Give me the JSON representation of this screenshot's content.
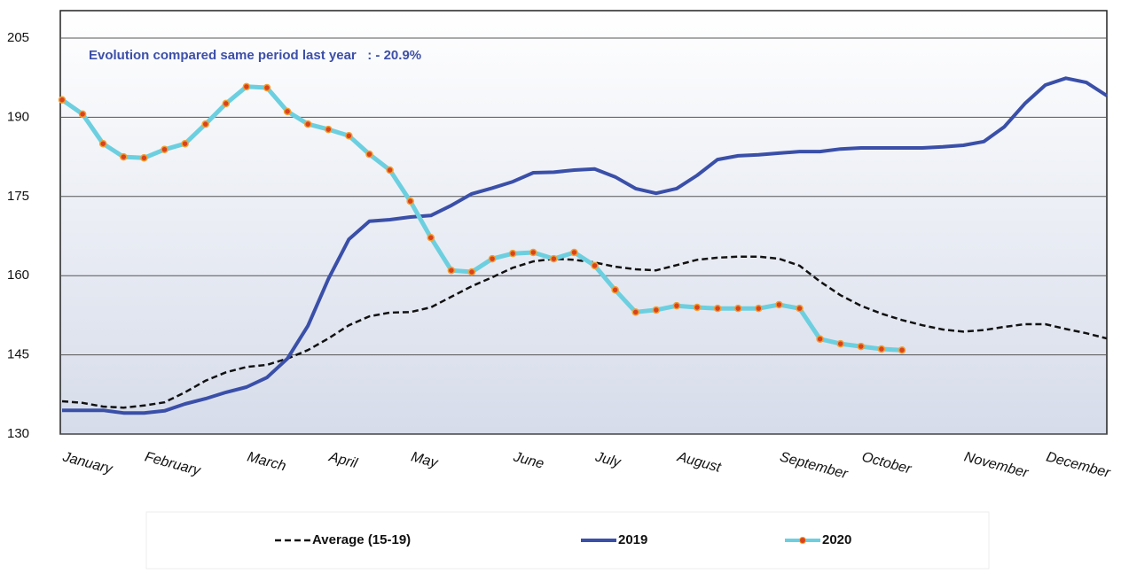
{
  "chart_data": {
    "type": "line",
    "annotation": "Evolution compared same period last year   : - 20.9%",
    "categories": [
      "January",
      null,
      null,
      null,
      "February",
      null,
      null,
      null,
      null,
      "March",
      null,
      null,
      null,
      "April",
      null,
      null,
      null,
      "May",
      null,
      null,
      null,
      null,
      "June",
      null,
      null,
      null,
      "July",
      null,
      null,
      null,
      "August",
      null,
      null,
      null,
      null,
      "September",
      null,
      null,
      null,
      "October",
      null,
      null,
      null,
      null,
      "November",
      null,
      null,
      null,
      "December",
      null,
      null,
      null
    ],
    "series": [
      {
        "name": "Average (15-19)",
        "color": "#111111",
        "dash": true,
        "markers": false,
        "values": [
          136.2,
          135.9,
          135.2,
          135.0,
          135.4,
          136.0,
          137.9,
          140.1,
          141.7,
          142.7,
          143.1,
          144.3,
          145.9,
          148.1,
          150.6,
          152.3,
          153.0,
          153.1,
          154.0,
          156.0,
          158.0,
          159.7,
          161.5,
          162.7,
          163.2,
          163.0,
          162.5,
          161.7,
          161.2,
          161.0,
          162.0,
          163.0,
          163.4,
          163.6,
          163.6,
          163.2,
          161.9,
          158.9,
          156.3,
          154.3,
          152.8,
          151.6,
          150.6,
          149.8,
          149.4,
          149.7,
          150.3,
          150.8,
          150.8,
          149.9,
          149.1,
          148.1
        ]
      },
      {
        "name": "2019",
        "color": "#3a4fa8",
        "dash": false,
        "markers": false,
        "values": [
          134.5,
          134.5,
          134.5,
          134.0,
          134.0,
          134.4,
          135.7,
          136.7,
          137.9,
          138.9,
          140.7,
          144.3,
          150.5,
          159.4,
          166.9,
          170.3,
          170.6,
          171.1,
          171.4,
          173.3,
          175.5,
          176.6,
          177.8,
          179.5,
          179.6,
          180.0,
          180.2,
          178.7,
          176.5,
          175.6,
          176.5,
          179.0,
          182.0,
          182.7,
          182.9,
          183.2,
          183.5,
          183.5,
          184.0,
          184.2,
          184.2,
          184.2,
          184.2,
          184.4,
          184.7,
          185.4,
          188.2,
          192.6,
          196.1,
          197.4,
          196.6,
          194.1
        ]
      },
      {
        "name": "2020",
        "color": "#6ccfdf",
        "dash": false,
        "markers": true,
        "values": [
          193.3,
          190.6,
          185.0,
          182.5,
          182.3,
          183.9,
          185.0,
          188.7,
          192.6,
          195.8,
          195.6,
          191.1,
          188.7,
          187.7,
          186.5,
          183.0,
          180.0,
          174.1,
          167.2,
          161.0,
          160.7,
          163.2,
          164.2,
          164.4,
          163.2,
          164.4,
          161.9,
          157.3,
          153.1,
          153.5,
          154.3,
          154.0,
          153.8,
          153.8,
          153.8,
          154.5,
          153.8,
          148.0,
          147.1,
          146.6,
          146.1,
          145.9,
          null,
          null,
          null,
          null,
          null,
          null,
          null,
          null,
          null,
          null
        ]
      }
    ],
    "ylim": [
      130,
      205
    ],
    "yticks": [
      130,
      145,
      160,
      175,
      190,
      205
    ],
    "grid": true,
    "legend": "bottom"
  }
}
